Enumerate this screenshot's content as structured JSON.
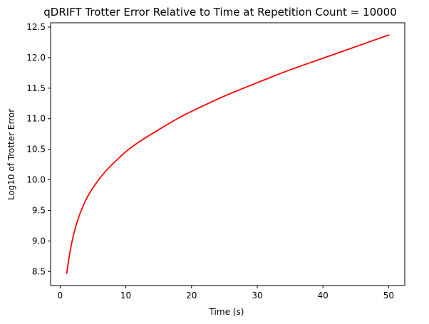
{
  "chart_data": {
    "type": "line",
    "title": "qDRIFT Trotter Error Relative to Time at Repetition Count = 10000",
    "xlabel": "Time (s)",
    "ylabel": "Log10 of Trotter Error",
    "xlim": [
      -1.45,
      52.45
    ],
    "ylim": [
      8.27,
      12.57
    ],
    "xticks": [
      0,
      10,
      20,
      30,
      40,
      50
    ],
    "yticks": [
      8.5,
      9.0,
      9.5,
      10.0,
      10.5,
      11.0,
      11.5,
      12.0,
      12.5
    ],
    "grid": false,
    "legend": "none",
    "series": [
      {
        "color": "#ff0000",
        "x": [
          1,
          1.5,
          2,
          2.5,
          3,
          4,
          5,
          6,
          7,
          8,
          10,
          12,
          15,
          18,
          20,
          25,
          30,
          35,
          40,
          45,
          50
        ],
        "y": [
          8.47,
          8.82,
          9.08,
          9.28,
          9.44,
          9.69,
          9.87,
          10.02,
          10.15,
          10.26,
          10.46,
          10.62,
          10.82,
          11.01,
          11.12,
          11.37,
          11.59,
          11.8,
          11.99,
          12.18,
          12.37
        ]
      }
    ]
  }
}
